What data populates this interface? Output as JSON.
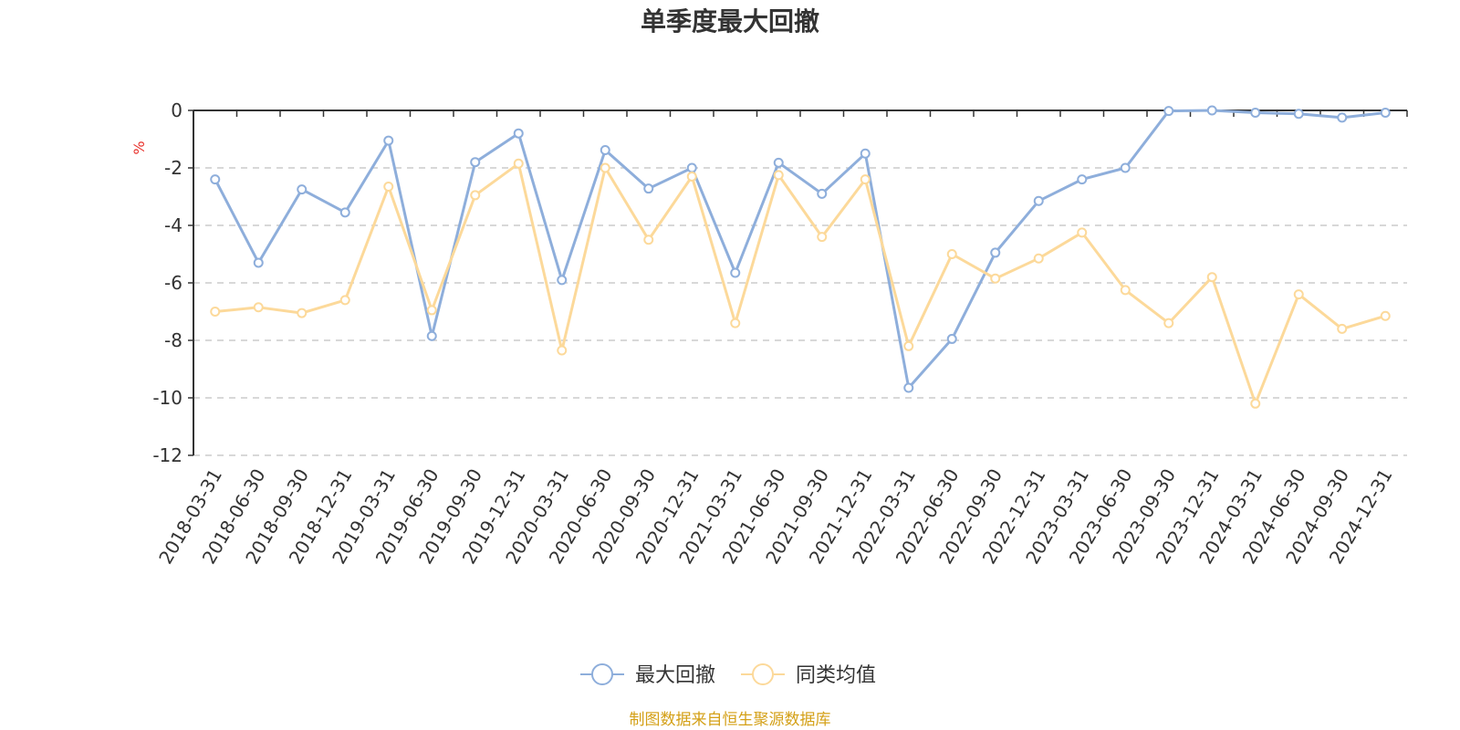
{
  "chart_data": {
    "type": "line",
    "title": "单季度最大回撤",
    "ylabel": "%",
    "ylim": [
      -12,
      0
    ],
    "yticks": [
      0,
      -2,
      -4,
      -6,
      -8,
      -10,
      -12
    ],
    "grid": true,
    "legend_position": "bottom",
    "categories": [
      "2018-03-31",
      "2018-06-30",
      "2018-09-30",
      "2018-12-31",
      "2019-03-31",
      "2019-06-30",
      "2019-09-30",
      "2019-12-31",
      "2020-03-31",
      "2020-06-30",
      "2020-09-30",
      "2020-12-31",
      "2021-03-31",
      "2021-06-30",
      "2021-09-30",
      "2021-12-31",
      "2022-03-31",
      "2022-06-30",
      "2022-09-30",
      "2022-12-31",
      "2023-03-31",
      "2023-06-30",
      "2023-09-30",
      "2023-12-31",
      "2024-03-31",
      "2024-06-30",
      "2024-09-30",
      "2024-12-31"
    ],
    "series": [
      {
        "name": "最大回撤",
        "color": "#8eaedb",
        "values": [
          -2.4,
          -5.3,
          -2.75,
          -3.55,
          -1.05,
          -7.85,
          -1.8,
          -0.8,
          -5.9,
          -1.38,
          -2.72,
          -2.0,
          -5.65,
          -1.82,
          -2.9,
          -1.5,
          -9.65,
          -7.95,
          -4.95,
          -3.15,
          -2.4,
          -2.0,
          -0.02,
          0.0,
          -0.08,
          -0.12,
          -0.25,
          -0.08
        ]
      },
      {
        "name": "同类均值",
        "color": "#fcd99a",
        "values": [
          -7.0,
          -6.85,
          -7.05,
          -6.6,
          -2.65,
          -6.95,
          -2.95,
          -1.85,
          -8.35,
          -2.0,
          -4.5,
          -2.3,
          -7.4,
          -2.25,
          -4.4,
          -2.4,
          -8.2,
          -5.0,
          -5.85,
          -5.15,
          -4.25,
          -6.25,
          -7.4,
          -5.8,
          -10.2,
          -6.4,
          -7.6,
          -7.15
        ]
      }
    ]
  },
  "footer": {
    "source": "制图数据来自恒生聚源数据库"
  },
  "colors": {
    "unit_label": "#e8322c",
    "source_text": "#d4a017",
    "axis": "#333333",
    "grid": "#cccccc"
  }
}
